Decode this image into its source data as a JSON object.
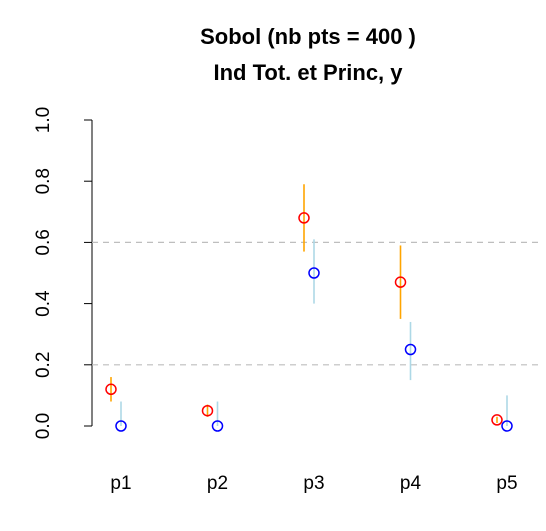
{
  "chart_data": {
    "type": "scatter",
    "title": "Sobol (nb pts = 400 )",
    "subtitle": "Ind Tot. et Princ, y",
    "xlabel": "",
    "ylabel": "",
    "categories": [
      "p1",
      "p2",
      "p3",
      "p4",
      "p5"
    ],
    "ylim": [
      0.0,
      1.0
    ],
    "yticks": [
      "0.0",
      "0.2",
      "0.4",
      "0.6",
      "0.8",
      "1.0"
    ],
    "hlines": [
      0.2,
      0.6
    ],
    "series": [
      {
        "color": "#ff0000",
        "bar_color": "#ffa500",
        "values": [
          0.12,
          0.05,
          0.68,
          0.47,
          0.02
        ],
        "lower": [
          0.08,
          0.03,
          0.57,
          0.35,
          0.01
        ],
        "upper": [
          0.16,
          0.07,
          0.79,
          0.59,
          0.03
        ]
      },
      {
        "color": "#0000ff",
        "bar_color": "#add8e6",
        "values": [
          0.0,
          0.0,
          0.5,
          0.25,
          0.0
        ],
        "lower": [
          0.0,
          0.0,
          0.4,
          0.15,
          0.0
        ],
        "upper": [
          0.08,
          0.08,
          0.61,
          0.34,
          0.1
        ]
      }
    ]
  }
}
